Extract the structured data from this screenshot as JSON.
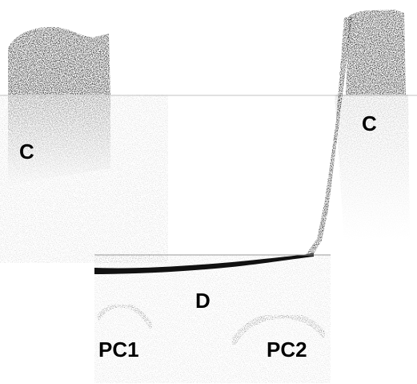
{
  "image": {
    "labels": {
      "cornea_left": "C",
      "cornea_right": "C",
      "descemet": "D",
      "posterior_cornea_1": "PC1",
      "posterior_cornea_2": "PC2"
    },
    "colors": {
      "background": "#ffffff",
      "tissue_dark": "#1a1a1a",
      "speckle": "#5a5a5a",
      "label": "#000000"
    }
  }
}
